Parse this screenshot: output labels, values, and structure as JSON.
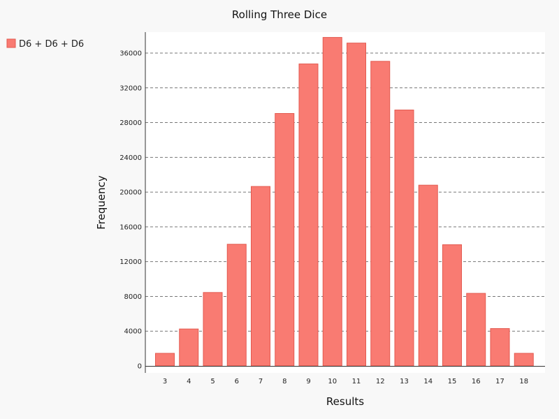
{
  "chart_data": {
    "type": "bar",
    "title": "Rolling Three Dice",
    "xlabel": "Results",
    "ylabel": "Frequency",
    "categories": [
      "3",
      "4",
      "5",
      "6",
      "7",
      "8",
      "9",
      "10",
      "11",
      "12",
      "13",
      "14",
      "15",
      "16",
      "17",
      "18"
    ],
    "series": [
      {
        "name": "D6 + D6 + D6",
        "values": [
          1450,
          4250,
          8450,
          14000,
          20650,
          29050,
          34750,
          37800,
          37150,
          35050,
          29450,
          20800,
          13950,
          8350,
          4300,
          1450
        ]
      }
    ],
    "ylim": [
      0,
      38000
    ],
    "yticks": [
      0,
      4000,
      8000,
      12000,
      16000,
      20000,
      24000,
      28000,
      32000,
      36000
    ],
    "grid": true,
    "legend_position": "top-left",
    "colors": {
      "bar_fill": "#f97b72",
      "bar_stroke": "#e35a50",
      "background": "#f8f8f8",
      "plot_background": "#ffffff"
    }
  }
}
